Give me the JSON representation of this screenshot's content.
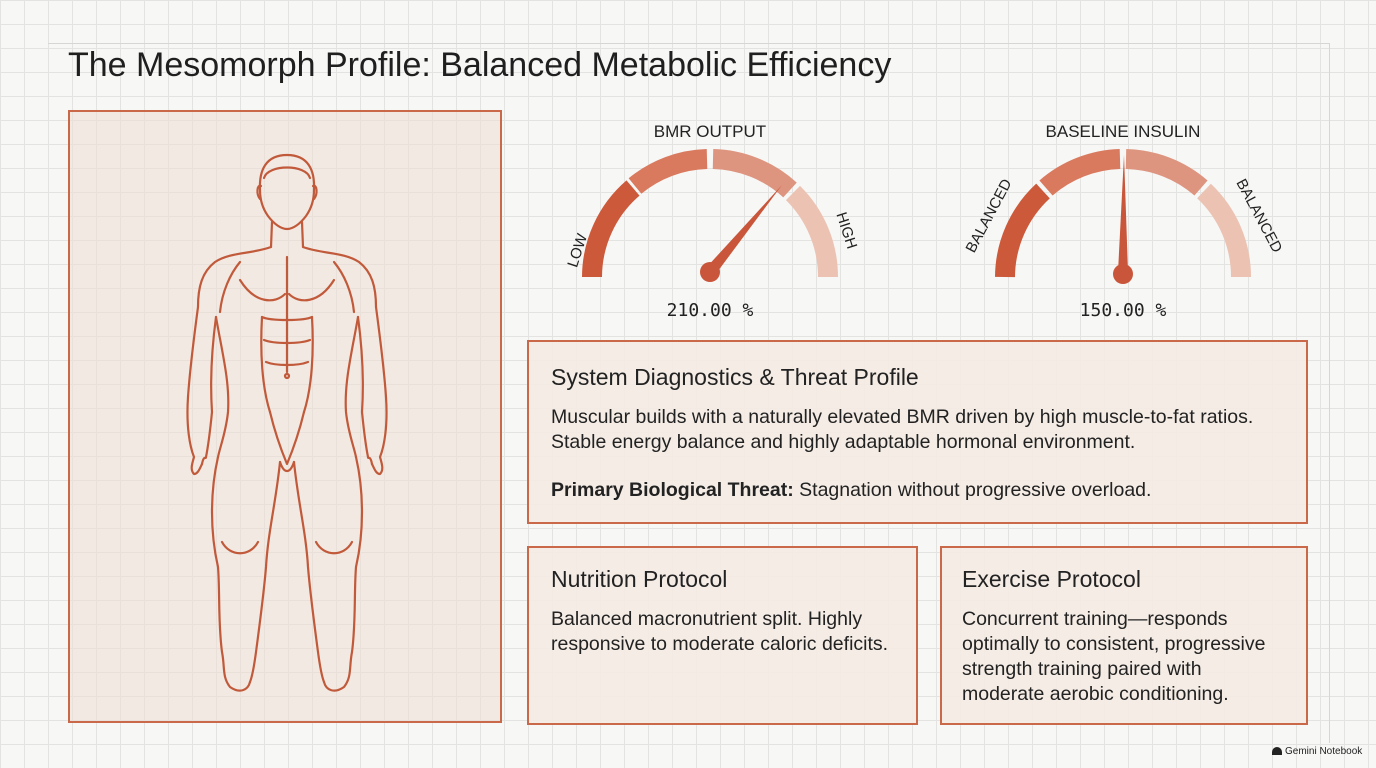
{
  "title": "The Mesomorph Profile: Balanced Metabolic Efficiency",
  "figure": {
    "icon": "human-body-outline-icon"
  },
  "gauges": [
    {
      "label": "BMR OUTPUT",
      "left_label": "LOW",
      "right_label": "HIGH",
      "readout": "210.00 %",
      "needle_fraction": 0.78
    },
    {
      "label": "BASELINE INSULIN",
      "left_label": "BALANCED",
      "right_label": "BALANCED",
      "readout": "150.00 %",
      "needle_fraction": 0.52
    }
  ],
  "diagnostics": {
    "title": "System Diagnostics & Threat Profile",
    "body": "Muscular builds with a naturally elevated BMR driven by high muscle-to-fat ratios. Stable energy balance and highly adaptable hormonal environment.",
    "threat_label": "Primary Biological Threat:",
    "threat_text": " Stagnation without progressive overload."
  },
  "nutrition": {
    "title": "Nutrition Protocol",
    "body": "Balanced macronutrient split. Highly responsive to moderate caloric deficits."
  },
  "exercise": {
    "title": "Exercise Protocol",
    "body": "Concurrent training—responds optimally to consistent, progressive strength training paired with moderate aerobic conditioning."
  },
  "watermark": "Gemini Notebook",
  "colors": {
    "accent": "#c9694a",
    "arc1": "#cc5a3a",
    "arc2": "#d98f78",
    "arc3": "#e9bfae"
  }
}
